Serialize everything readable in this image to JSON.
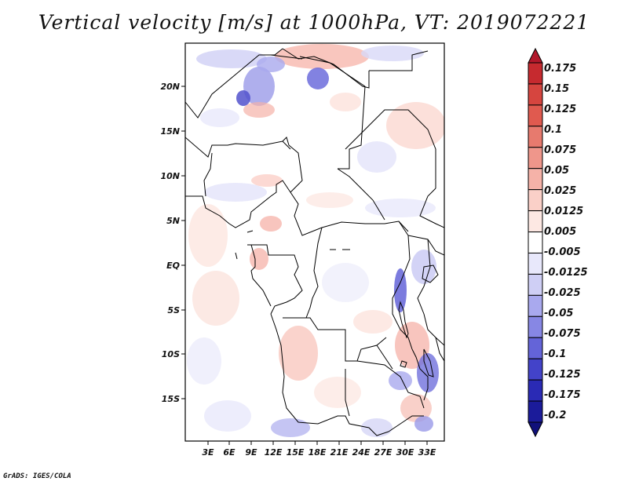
{
  "title": "Vertical velocity [m/s] at 1000hPa, VT: 2019072221",
  "credit": "GrADS: IGES/COLA",
  "lat_labels": [
    "20N",
    "15N",
    "10N",
    "5N",
    "EQ",
    "5S",
    "10S",
    "15S"
  ],
  "lon_labels": [
    "3E",
    "6E",
    "9E",
    "12E",
    "15E",
    "18E",
    "21E",
    "24E",
    "27E",
    "30E",
    "33E"
  ],
  "colorbar": {
    "levels": [
      "0.175",
      "0.15",
      "0.125",
      "0.1",
      "0.075",
      "0.05",
      "0.025",
      "0.0125",
      "0.005",
      "-0.005",
      "-0.0125",
      "-0.025",
      "-0.05",
      "-0.075",
      "-0.1",
      "-0.125",
      "-0.175",
      "-0.2"
    ],
    "colors": [
      "#b2182b",
      "#c62a2f",
      "#d6453f",
      "#e05a4f",
      "#e77a6e",
      "#ef968b",
      "#f5b2a8",
      "#fad0c8",
      "#fde8e3",
      "#ffffff",
      "#e8e8fb",
      "#cfcff5",
      "#a9a9ee",
      "#8787e4",
      "#6464d8",
      "#4343c9",
      "#2a2ab5",
      "#1b1b9a",
      "#10107a"
    ]
  }
}
